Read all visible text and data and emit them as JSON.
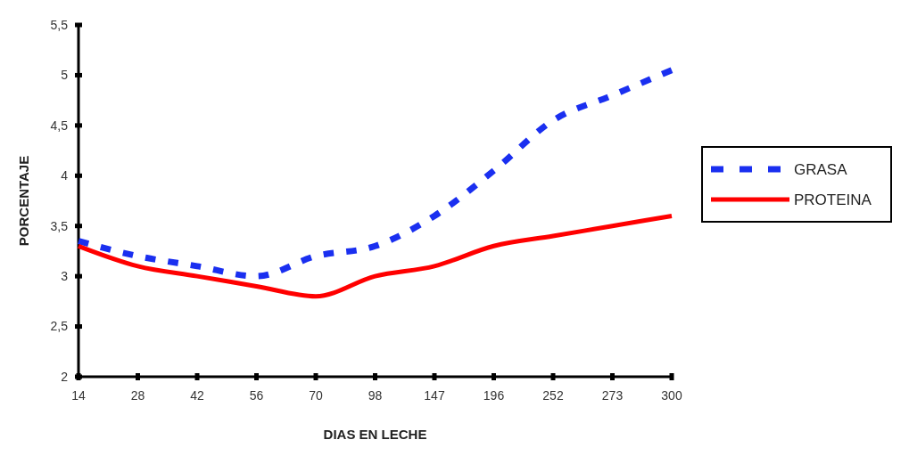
{
  "chart_data": {
    "type": "line",
    "xlabel": "DIAS EN LECHE",
    "ylabel": "PORCENTAJE",
    "categories": [
      "14",
      "28",
      "42",
      "56",
      "70",
      "98",
      "147",
      "196",
      "252",
      "273",
      "300"
    ],
    "series": [
      {
        "name": "GRASA",
        "color": "#1a2ff0",
        "line_style": "dashed",
        "values": [
          3.35,
          3.2,
          3.1,
          3.0,
          3.2,
          3.3,
          3.6,
          4.05,
          4.55,
          4.8,
          5.05
        ]
      },
      {
        "name": "PROTEINA",
        "color": "#ff0000",
        "line_style": "solid",
        "values": [
          3.3,
          3.1,
          3.0,
          2.9,
          2.8,
          3.0,
          3.1,
          3.3,
          3.4,
          3.5,
          3.6
        ]
      }
    ],
    "ylim": [
      2,
      5.5
    ],
    "yticks": [
      2,
      {
        "value": 2.5,
        "label": "2,5"
      },
      3,
      {
        "value": 3.5,
        "label": "3,5"
      },
      4,
      {
        "value": 4.5,
        "label": "4,5"
      },
      5,
      {
        "value": 5.5,
        "label": "5,5"
      }
    ],
    "grid": false,
    "legend": "right"
  }
}
